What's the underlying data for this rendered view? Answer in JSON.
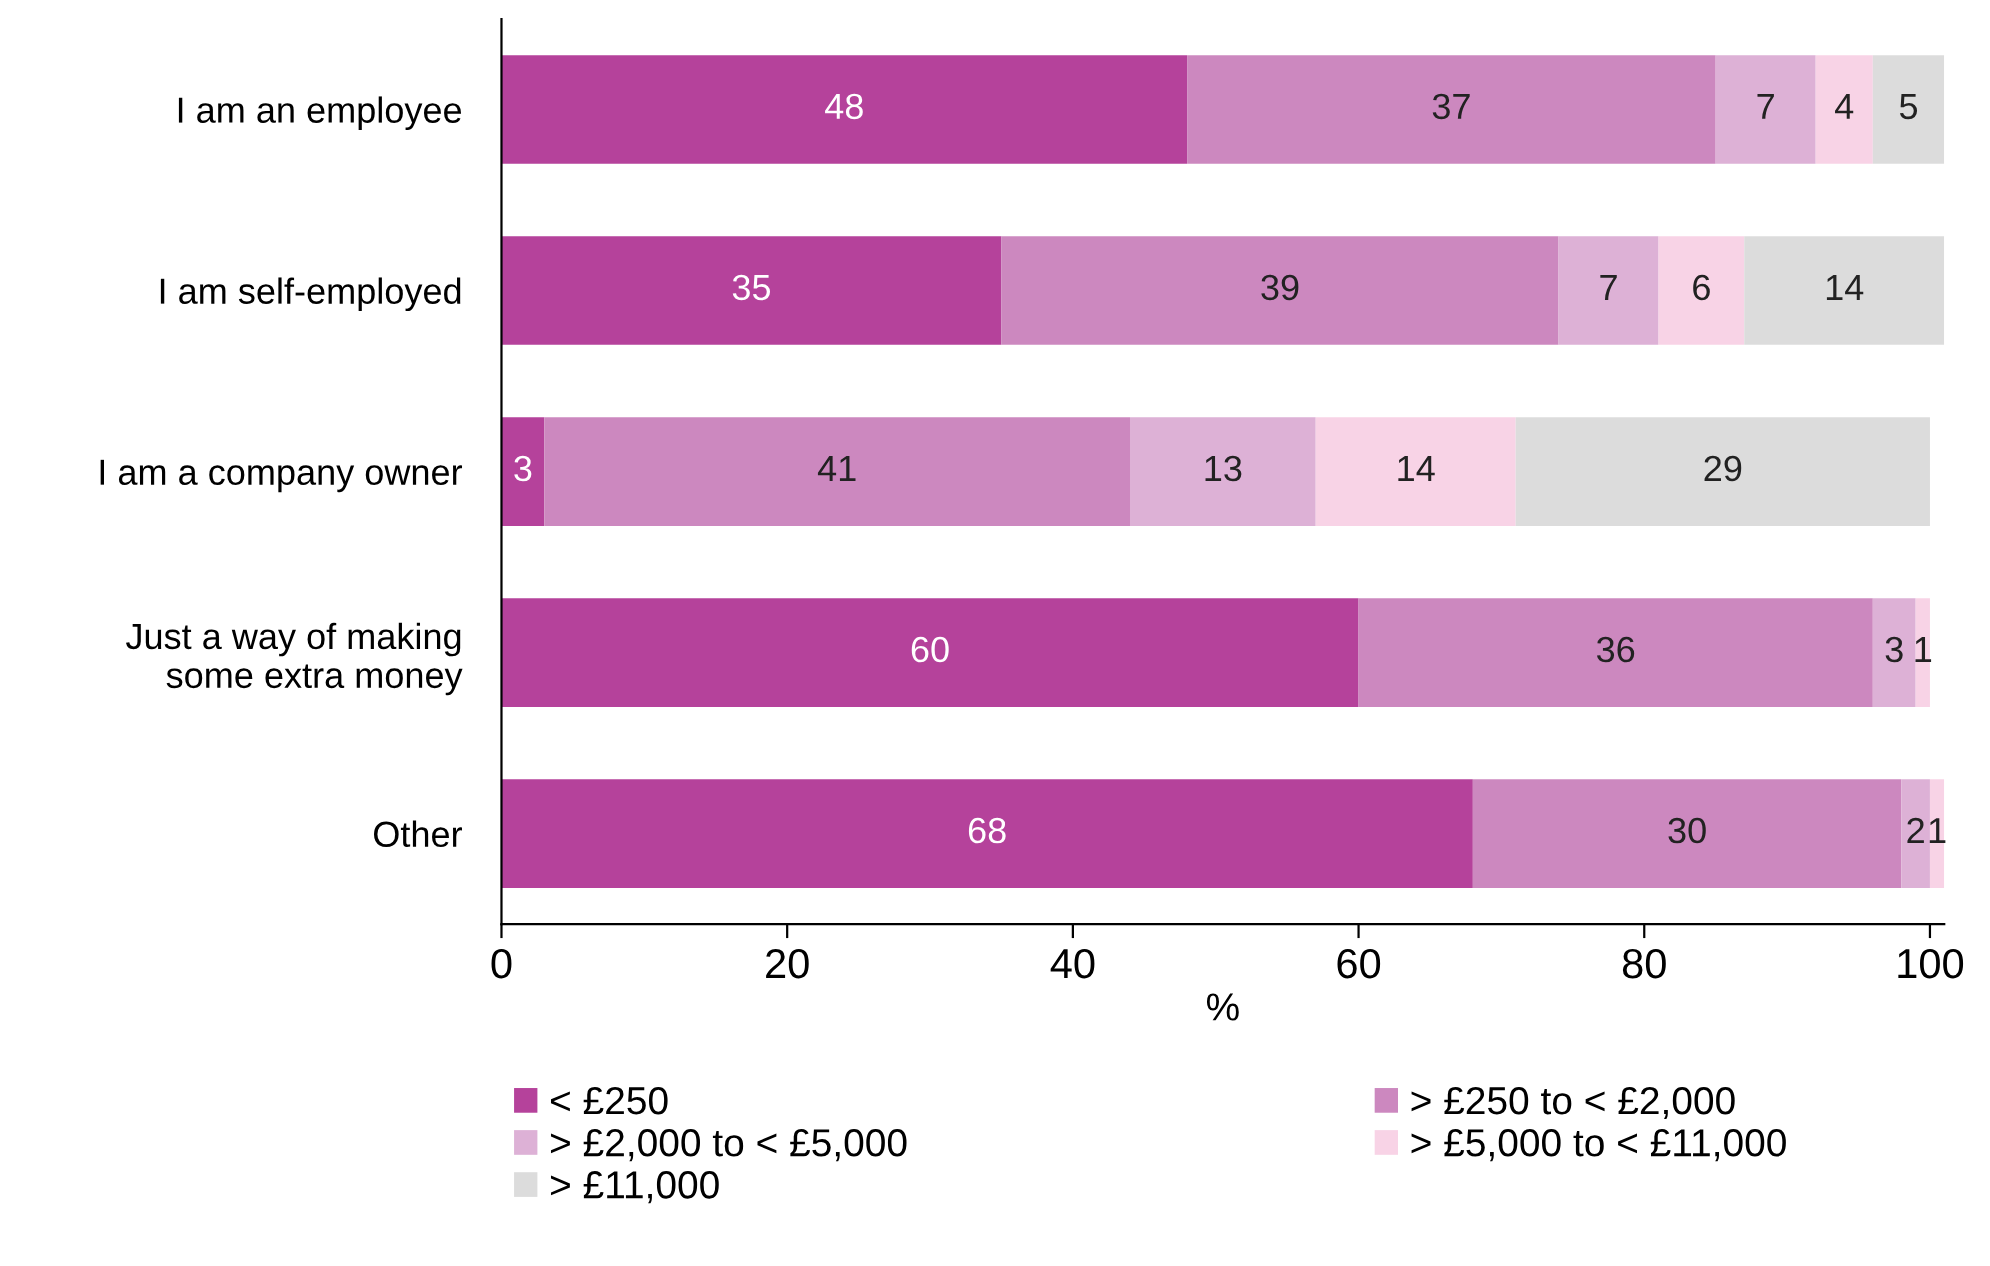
{
  "chart_data": {
    "type": "bar",
    "orientation": "horizontal",
    "stacked": true,
    "data_labels": true,
    "grid": false,
    "legend": "bottom",
    "xlabel": "%",
    "categories": [
      "I am an employee",
      "I am self-employed",
      "I am a company owner",
      "Just a way of making\nsome extra money",
      "Other"
    ],
    "series": [
      {
        "name": "< £250",
        "color": "#b5429b",
        "values": [
          48,
          35,
          3,
          60,
          68
        ]
      },
      {
        "name": "> £250 to < £2,000",
        "color": "#cc88bf",
        "values": [
          37,
          39,
          41,
          36,
          30
        ]
      },
      {
        "name": "> £2,000 to < £5,000",
        "color": "#ddb1d6",
        "values": [
          7,
          7,
          13,
          3,
          2
        ]
      },
      {
        "name": "> £5,000 to < £11,000",
        "color": "#f8d3e6",
        "values": [
          4,
          6,
          14,
          1,
          1
        ]
      },
      {
        "name": "> £11,000",
        "color": "#dcdcdc",
        "values": [
          5,
          14,
          29,
          null,
          null
        ]
      }
    ],
    "xlim": [
      0,
      101
    ],
    "xticks": [
      0,
      20,
      40,
      60,
      80,
      100
    ]
  }
}
